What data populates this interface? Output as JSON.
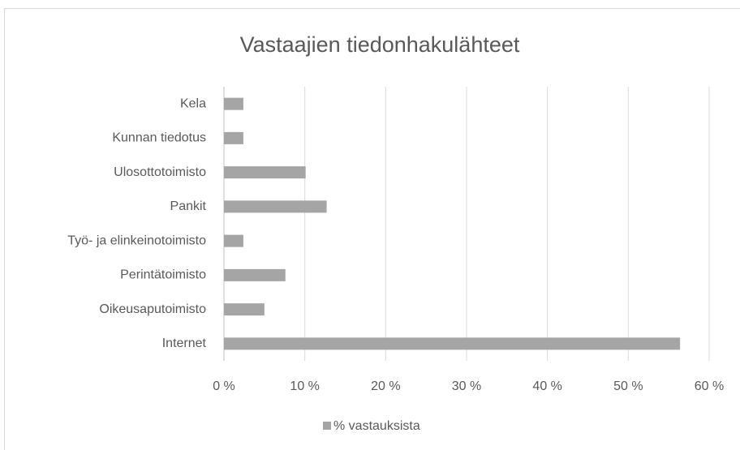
{
  "chart_data": {
    "type": "bar",
    "orientation": "horizontal",
    "title": "Vastaajien tiedonhakulähteet",
    "categories": [
      "Kela",
      "Kunnan tiedotus",
      "Ulosottotoimisto",
      "Pankit",
      "Työ- ja elinkeinotoimisto",
      "Perintätoimisto",
      "Oikeusaputoimisto",
      "Internet"
    ],
    "series": [
      {
        "name": "% vastauksista",
        "color": "#a5a5a5",
        "values": [
          2.4,
          2.4,
          10.1,
          12.7,
          2.4,
          7.6,
          5.0,
          56.4
        ]
      }
    ],
    "xlim": [
      0,
      60
    ],
    "xticks": [
      {
        "value": 0,
        "label": "0 %"
      },
      {
        "value": 10,
        "label": "10 %"
      },
      {
        "value": 20,
        "label": "20 %"
      },
      {
        "value": 30,
        "label": "30 %"
      },
      {
        "value": 40,
        "label": "40 %"
      },
      {
        "value": 50,
        "label": "50 %"
      },
      {
        "value": 60,
        "label": "60 %"
      }
    ],
    "grid": true,
    "legend": "bottom"
  }
}
